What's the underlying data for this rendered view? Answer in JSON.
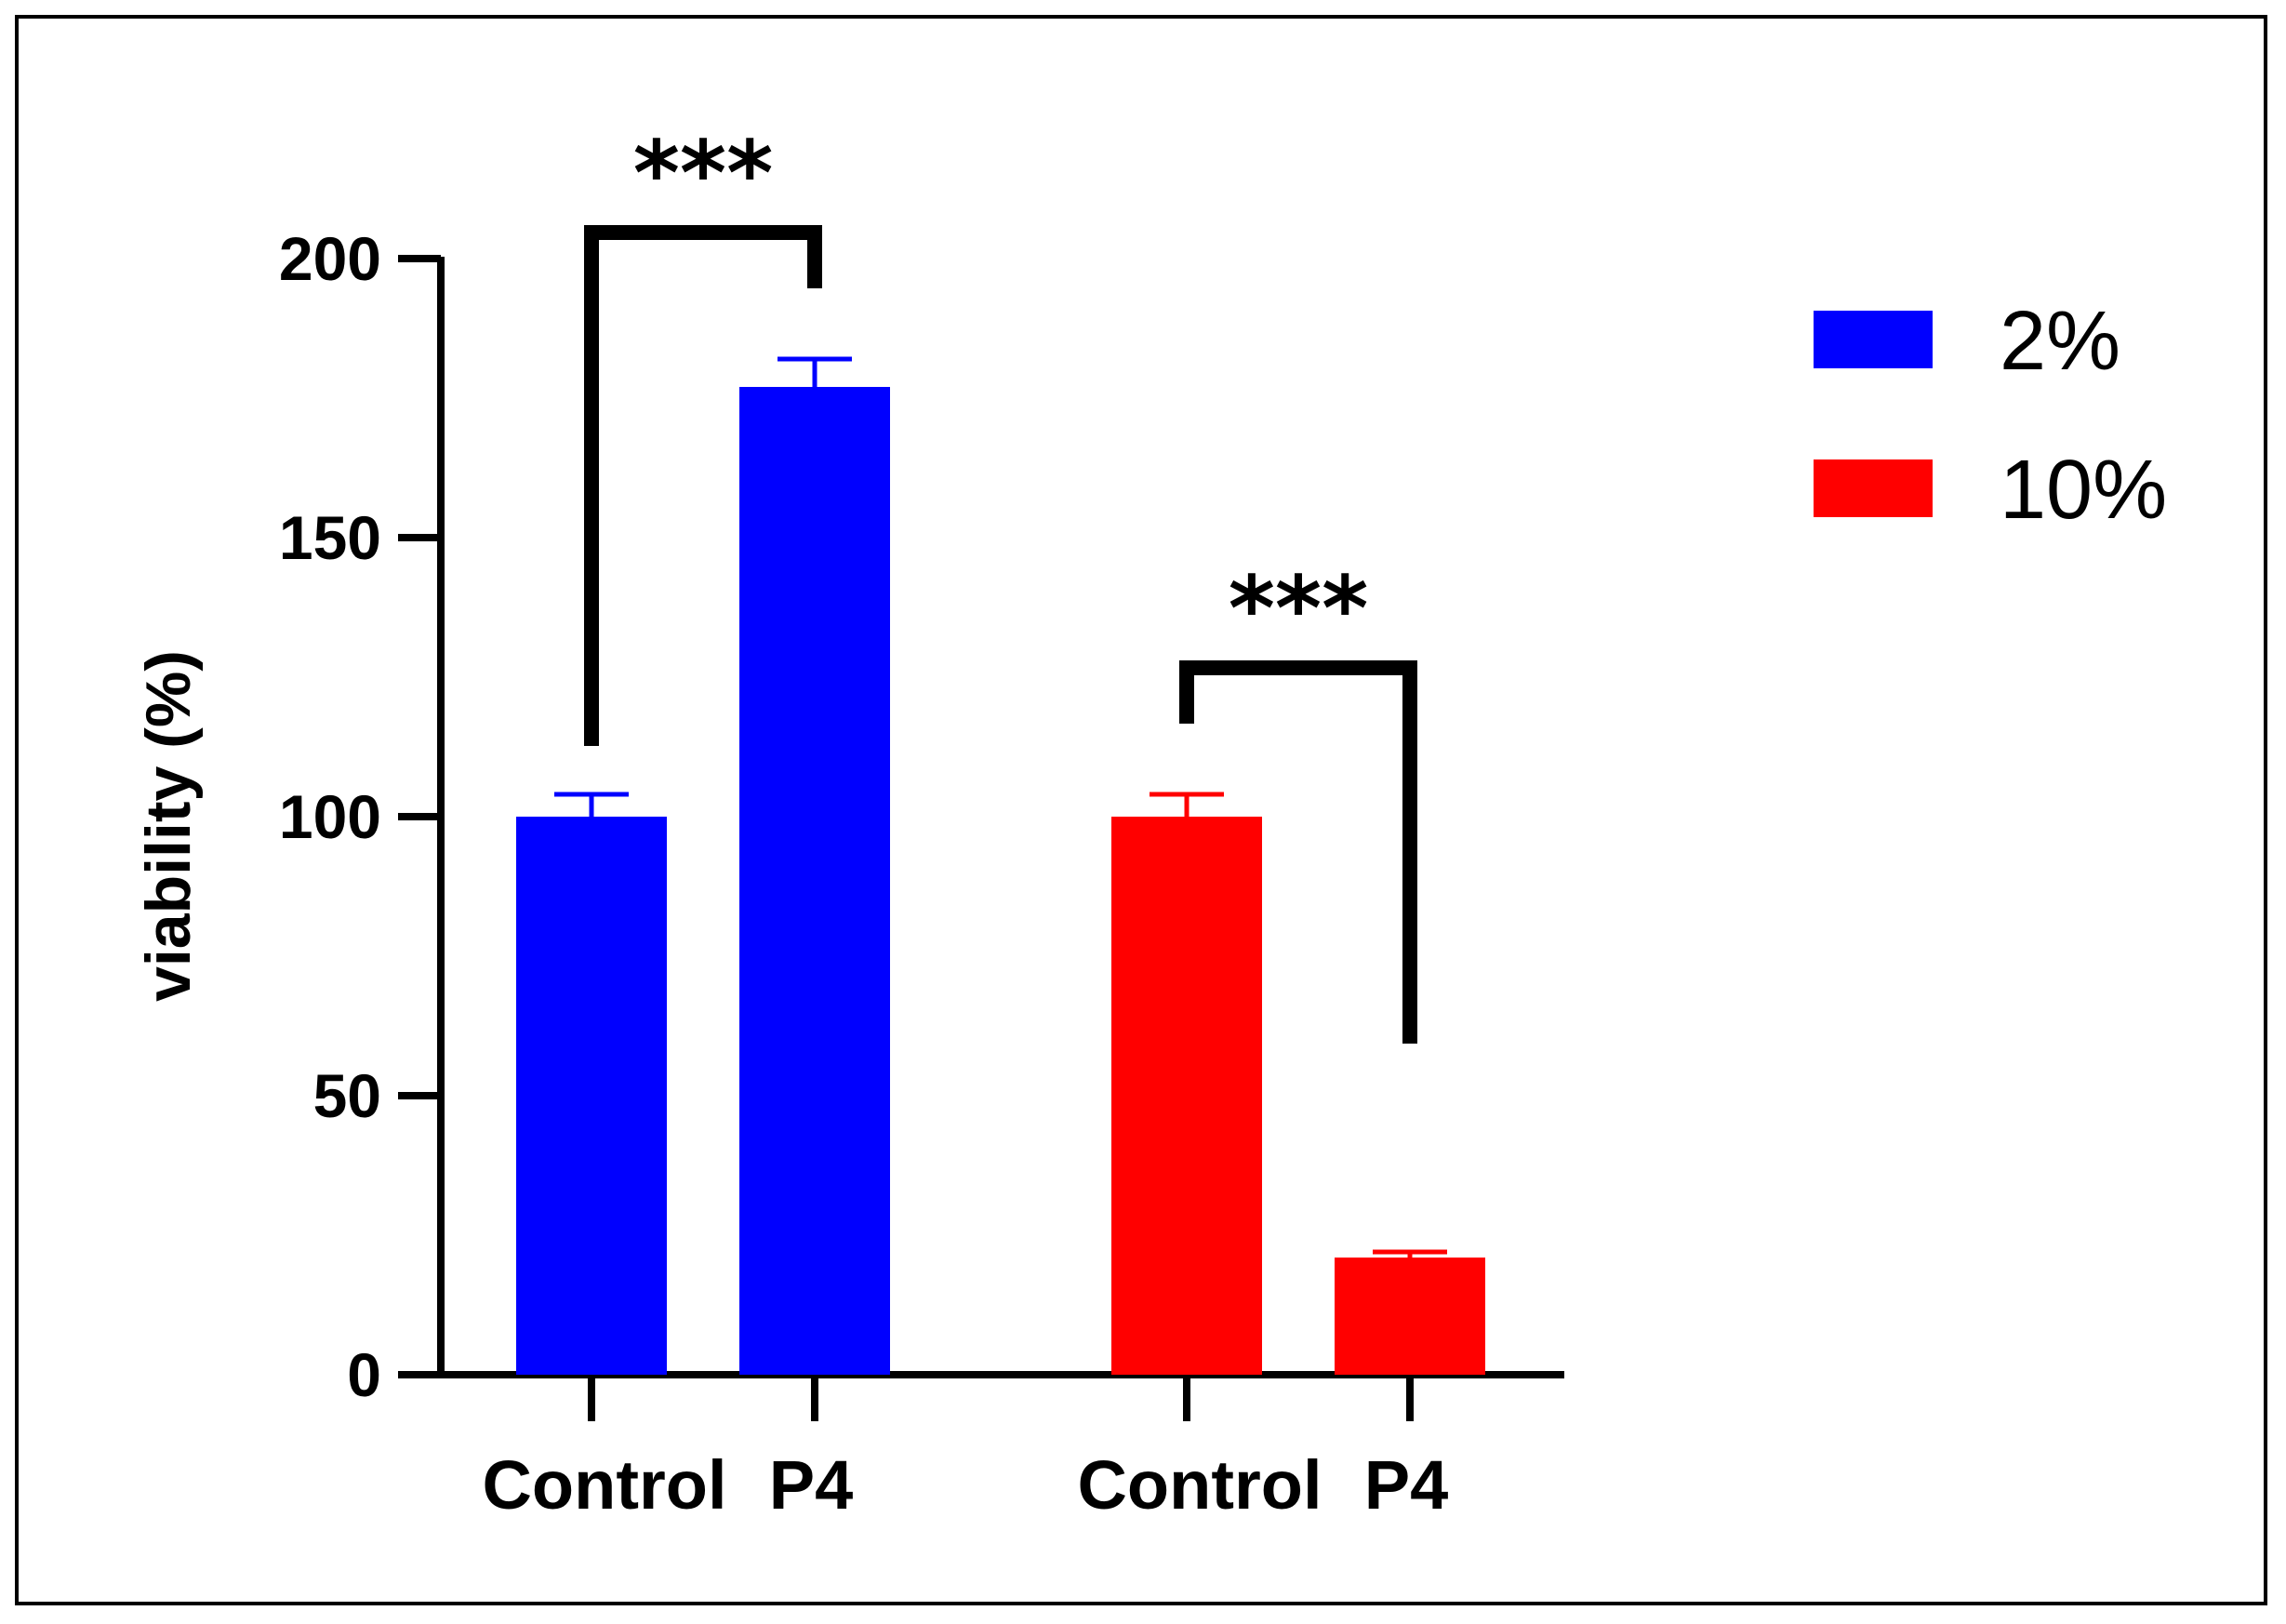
{
  "chart_data": {
    "type": "bar",
    "title": "",
    "xlabel": "",
    "ylabel": "viability (%)",
    "ylim": [
      0,
      200
    ],
    "yticks": [
      0,
      50,
      100,
      150,
      200
    ],
    "grid": false,
    "legend_position": "top-right",
    "groups": [
      {
        "name": "2%",
        "color": "#0000ff",
        "bars": [
          {
            "category": "Control",
            "value": 100,
            "error": 4
          },
          {
            "category": "P4",
            "value": 177,
            "error": 5
          }
        ],
        "significance": "***"
      },
      {
        "name": "10%",
        "color": "#ff0000",
        "bars": [
          {
            "category": "Control",
            "value": 100,
            "error": 4
          },
          {
            "category": "P4",
            "value": 21,
            "error": 1
          }
        ],
        "significance": "***"
      }
    ],
    "legend": [
      {
        "label": "2%",
        "color": "#0000ff"
      },
      {
        "label": "10%",
        "color": "#ff0000"
      }
    ]
  }
}
